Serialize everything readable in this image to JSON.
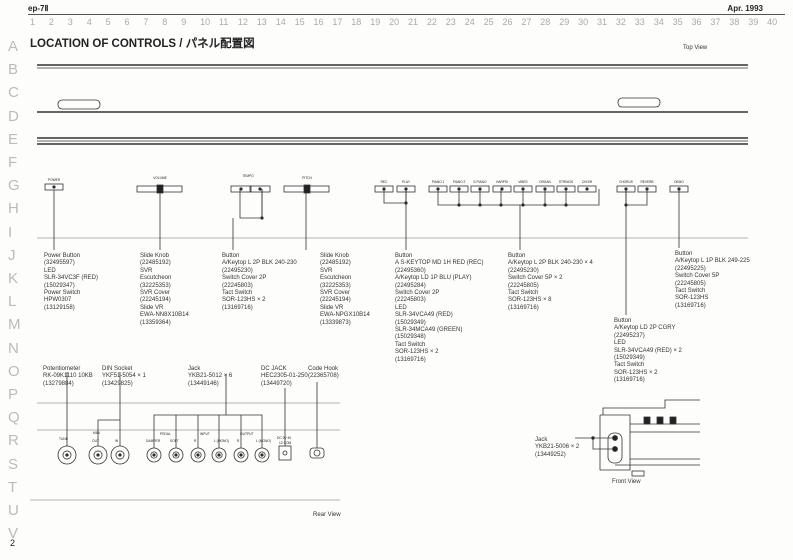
{
  "header": {
    "model": "ep-7Ⅱ",
    "date": "Apr. 1993",
    "page_number": "2"
  },
  "grid": {
    "columns": [
      "1",
      "2",
      "3",
      "4",
      "5",
      "6",
      "7",
      "8",
      "9",
      "10",
      "11",
      "12",
      "13",
      "14",
      "15",
      "16",
      "17",
      "18",
      "19",
      "20",
      "21",
      "22",
      "23",
      "24",
      "25",
      "26",
      "27",
      "28",
      "29",
      "30",
      "31",
      "32",
      "33",
      "34",
      "35",
      "36",
      "37",
      "38",
      "39",
      "40"
    ],
    "rows": [
      "A",
      "B",
      "C",
      "D",
      "E",
      "F",
      "G",
      "H",
      "I",
      "J",
      "K",
      "L",
      "M",
      "N",
      "O",
      "P",
      "Q",
      "R",
      "S",
      "T",
      "U",
      "V"
    ]
  },
  "title": "LOCATION OF CONTROLS / パネル配置図",
  "views": {
    "top": "Top View",
    "rear": "Rear View",
    "front": "Front View"
  },
  "panel_labels": [
    "POWER",
    "VOLUME",
    "TEMPO",
    "PITCH",
    "REC",
    "PLAY",
    "PIANO 1",
    "PIANO 2",
    "E.PIANO",
    "HARPSI",
    "VIBES",
    "ORGAN",
    "STRINGS",
    "CHOIR",
    "CHORUS",
    "REVERB",
    "DEMO"
  ],
  "parts": [
    {
      "id": "power",
      "lines": [
        "Power Button",
        "(32495597)",
        "LED",
        "SLR-34VC3F (RED)",
        "(15029347)",
        "Power Switch",
        "HPW0307",
        "(13129158)"
      ]
    },
    {
      "id": "volume",
      "lines": [
        "Slide Knob",
        "(22485192)",
        "SVR",
        "Escutcheon",
        "(32225353)",
        "SVR Cover",
        "(22245194)",
        "Slide VR",
        "EWA-NN8X10B14",
        "(13359364)"
      ]
    },
    {
      "id": "tempo",
      "lines": [
        "Button",
        "A/Keytop L 2P BLK 240-230",
        "(22495230)",
        "Switch Cover 2P",
        "(22245803)",
        "Tact Switch",
        "SOR-123HS × 2",
        "(13169716)"
      ]
    },
    {
      "id": "pitch",
      "lines": [
        "Slide Knob",
        "(22485192)",
        "SVR",
        "Escutcheon",
        "(32225353)",
        "SVR Cover",
        "(22245194)",
        "Slide VR",
        "EWA-NPGX10B14",
        "(13339873)"
      ]
    },
    {
      "id": "recplay",
      "lines": [
        "Button",
        "A S-KEYTOP MD 1H RED (REC)",
        "(22495360)",
        "A/Keytop LD 1P BLU (PLAY)",
        "(22495284)",
        "Switch Cover 2P",
        "(22245803)",
        "LED",
        "SLR-34VCA49 (RED)",
        "(15029349)",
        "SLR-34MCA49 (GREEN)",
        "(15029348)",
        "Tact Switch",
        "SOR-123HS × 2",
        "(13169716)"
      ]
    },
    {
      "id": "voices",
      "lines": [
        "Button",
        "A/Keytop L 2P BLK 240-230 × 4",
        "(22495230)",
        "Switch Cover 5P × 2",
        "(22245805)",
        "Tact Switch",
        "SOR-123HS × 8",
        "(13169716)"
      ]
    },
    {
      "id": "demo",
      "lines": [
        "Button",
        "A/Keytop L 1P BLK 249-225",
        "(22495225)",
        "Switch Cover 5P",
        "(22245805)",
        "Tact Switch",
        "SOR-123HS",
        "(13169716)"
      ]
    },
    {
      "id": "effects",
      "lines": [
        "Button",
        "A/Keytop LD 2P CGRY",
        "(22495237)",
        "LED",
        "SLR-34VCA49 (RED) × 2",
        "(15029349)",
        "Tact Switch",
        "SOR-123HS × 2",
        "(13169716)"
      ]
    },
    {
      "id": "pot",
      "lines": [
        "Potentiometer",
        "RK-09K1110 10KB",
        "(13279884)"
      ]
    },
    {
      "id": "din",
      "lines": [
        "DIN Socket",
        "YKF51-5054 × 1",
        "(13429825)"
      ]
    },
    {
      "id": "jack",
      "lines": [
        "Jack",
        "YKB21-5012 × 6",
        "(13449146)"
      ]
    },
    {
      "id": "dcjack",
      "lines": [
        "DC JACK",
        "HEC2305-01-250",
        "(13449720)"
      ]
    },
    {
      "id": "hook",
      "lines": [
        "Code Hook",
        "(22365708)"
      ]
    },
    {
      "id": "frontjack",
      "lines": [
        "Jack",
        "YKB21-5006 × 2",
        "(13449252)"
      ]
    }
  ],
  "rear_labels": [
    "TUNE",
    "MIDI",
    "OUT",
    "IN",
    "PEDAL",
    "DAMPER",
    "SOFT",
    "INPUT",
    "R",
    "L (MONO)",
    "OUTPUT",
    "R",
    "L (MONO)",
    "DC 9V IN",
    "12 COM"
  ]
}
